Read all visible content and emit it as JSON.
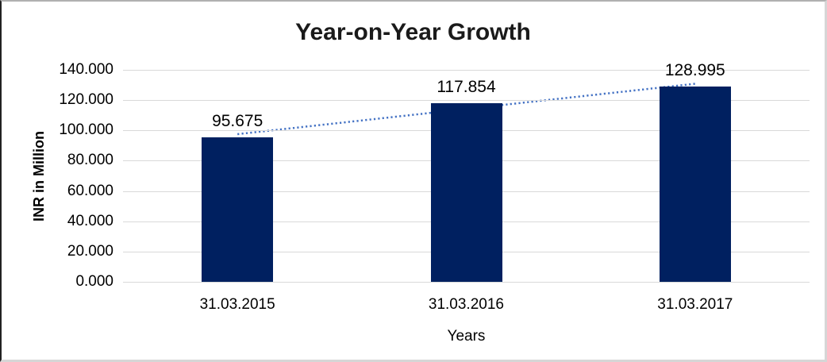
{
  "chart_data": {
    "type": "bar",
    "title": "Year-on-Year Growth",
    "xlabel": "Years",
    "ylabel": "INR in Million",
    "categories": [
      "31.03.2015",
      "31.03.2016",
      "31.03.2017"
    ],
    "values": [
      95.675,
      117.854,
      128.995
    ],
    "value_labels": [
      "95.675",
      "117.854",
      "128.995"
    ],
    "ylim": [
      0,
      140
    ],
    "ytick_step": 20,
    "yticks": [
      "0.000",
      "20.000",
      "40.000",
      "60.000",
      "80.000",
      "100.000",
      "120.000",
      "140.000"
    ],
    "grid": true,
    "legend": "none",
    "trendline": {
      "type": "linear",
      "style": "dotted",
      "color": "#4472C4"
    },
    "colors": {
      "bar": "#002060",
      "gridline": "#d9d9d9",
      "text": "#000000",
      "title": "#1a1a1a",
      "background": "#ffffff"
    }
  }
}
